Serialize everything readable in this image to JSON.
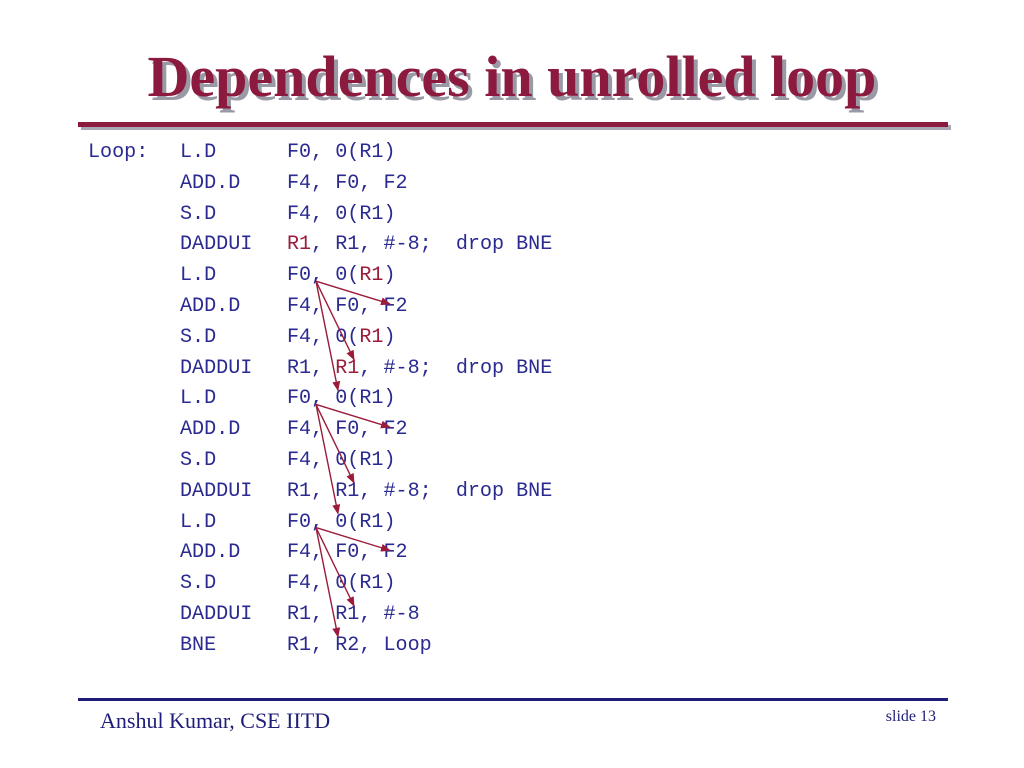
{
  "slide": {
    "title": "Dependences in unrolled loop",
    "footer_author": "Anshul Kumar, CSE IITD",
    "slide_number": "slide 13"
  },
  "code": {
    "lines": [
      {
        "label": "Loop:",
        "op": "L.D",
        "args": [
          {
            "t": "F0, 0(R1)"
          }
        ]
      },
      {
        "label": "",
        "op": "ADD.D",
        "args": [
          {
            "t": "F4, F0, F2"
          }
        ]
      },
      {
        "label": "",
        "op": "S.D",
        "args": [
          {
            "t": "F4, 0(R1)"
          }
        ]
      },
      {
        "label": "",
        "op": "DADDUI",
        "args": [
          {
            "t": "R1",
            "hl": true
          },
          {
            "t": ", R1, #-8;  drop BNE"
          }
        ]
      },
      {
        "label": "",
        "op": "L.D",
        "args": [
          {
            "t": "F0, 0("
          },
          {
            "t": "R1",
            "hl": true
          },
          {
            "t": ")"
          }
        ]
      },
      {
        "label": "",
        "op": "ADD.D",
        "args": [
          {
            "t": "F4, F0, F2"
          }
        ]
      },
      {
        "label": "",
        "op": "S.D",
        "args": [
          {
            "t": "F4, 0("
          },
          {
            "t": "R1",
            "hl": true
          },
          {
            "t": ")"
          }
        ]
      },
      {
        "label": "",
        "op": "DADDUI",
        "args": [
          {
            "t": "R1, "
          },
          {
            "t": "R1",
            "hl": true
          },
          {
            "t": ", #-8;  drop BNE"
          }
        ]
      },
      {
        "label": "",
        "op": "L.D",
        "args": [
          {
            "t": "F0, 0(R1)"
          }
        ]
      },
      {
        "label": "",
        "op": "ADD.D",
        "args": [
          {
            "t": "F4, F0, F2"
          }
        ]
      },
      {
        "label": "",
        "op": "S.D",
        "args": [
          {
            "t": "F4, 0(R1)"
          }
        ]
      },
      {
        "label": "",
        "op": "DADDUI",
        "args": [
          {
            "t": "R1, R1, #-8;  drop BNE"
          }
        ]
      },
      {
        "label": "",
        "op": "L.D",
        "args": [
          {
            "t": "F0, 0(R1)"
          }
        ]
      },
      {
        "label": "",
        "op": "ADD.D",
        "args": [
          {
            "t": "F4, F0, F2"
          }
        ]
      },
      {
        "label": "",
        "op": "S.D",
        "args": [
          {
            "t": "F4, 0(R1)"
          }
        ]
      },
      {
        "label": "",
        "op": "DADDUI",
        "args": [
          {
            "t": "R1, R1, #-8"
          }
        ]
      },
      {
        "label": "",
        "op": "BNE",
        "args": [
          {
            "t": "R1, R2, Loop"
          }
        ]
      }
    ]
  },
  "dependences": [
    {
      "from_line": 4,
      "to_lines": [
        5,
        7,
        8
      ]
    },
    {
      "from_line": 8,
      "to_lines": [
        9,
        11,
        12
      ]
    },
    {
      "from_line": 12,
      "to_lines": [
        13,
        15,
        16
      ]
    }
  ],
  "colors": {
    "title": "#8b1a3e",
    "code": "#2a2a90",
    "highlight": "#9b1b3a",
    "arrow": "#9b1b3a",
    "footer": "#1e1e78"
  }
}
